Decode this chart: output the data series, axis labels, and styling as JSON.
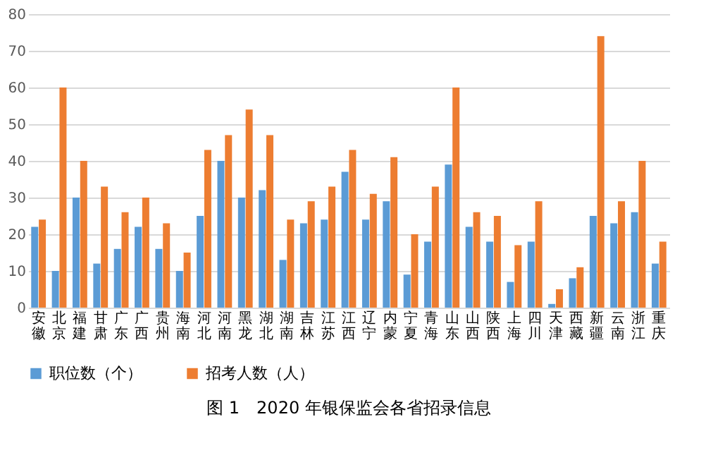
{
  "chart_data": {
    "type": "bar",
    "title": "图 1　2020 年银保监会各省招录信息",
    "categories": [
      "安徽",
      "北京",
      "福建",
      "甘肃",
      "广东",
      "广西",
      "贵州",
      "海南",
      "河北",
      "河南",
      "黑龙",
      "湖北",
      "湖南",
      "吉林",
      "江苏",
      "江西",
      "辽宁",
      "内蒙",
      "宁夏",
      "青海",
      "山东",
      "山西",
      "陕西",
      "上海",
      "四川",
      "天津",
      "西藏",
      "新疆",
      "云南",
      "浙江",
      "重庆"
    ],
    "series": [
      {
        "name": "职位数（个）",
        "color": "#5b9bd5",
        "values": [
          22,
          10,
          30,
          12,
          16,
          22,
          16,
          10,
          25,
          40,
          30,
          32,
          13,
          23,
          24,
          37,
          24,
          29,
          9,
          18,
          39,
          22,
          18,
          7,
          18,
          1,
          8,
          25,
          23,
          26,
          12
        ]
      },
      {
        "name": "招考人数（人）",
        "color": "#ed7d31",
        "values": [
          24,
          60,
          40,
          33,
          26,
          30,
          23,
          15,
          43,
          47,
          54,
          47,
          24,
          29,
          33,
          43,
          31,
          41,
          20,
          33,
          60,
          26,
          25,
          17,
          29,
          5,
          11,
          74,
          29,
          40,
          18
        ]
      }
    ],
    "ylim": [
      0,
      80
    ],
    "yticks": [
      0,
      10,
      20,
      30,
      40,
      50,
      60,
      70,
      80
    ],
    "grid": "y",
    "legend": "bottom"
  }
}
